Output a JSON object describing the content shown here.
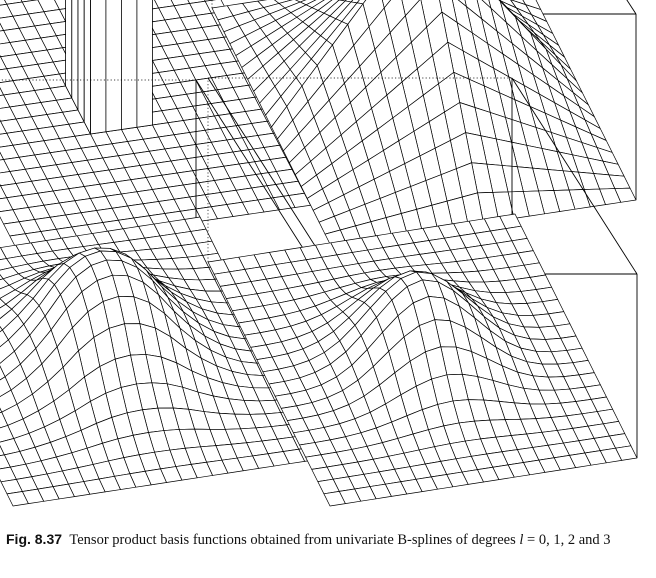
{
  "caption": {
    "label": "Fig. 8.37",
    "text_before": "Tensor product basis functions obtained from univariate B-splines of degrees ",
    "variable": "l",
    "text_after": " = 0, 1, 2 and 3"
  },
  "figure": {
    "panels": [
      {
        "degree": 0,
        "shape": "box"
      },
      {
        "degree": 1,
        "shape": "pyramid"
      },
      {
        "degree": 2,
        "shape": "bell"
      },
      {
        "degree": 3,
        "shape": "bell"
      }
    ],
    "grid_lines": 20,
    "colors": {
      "ink": "#000000",
      "surface": "#ffffff"
    }
  }
}
